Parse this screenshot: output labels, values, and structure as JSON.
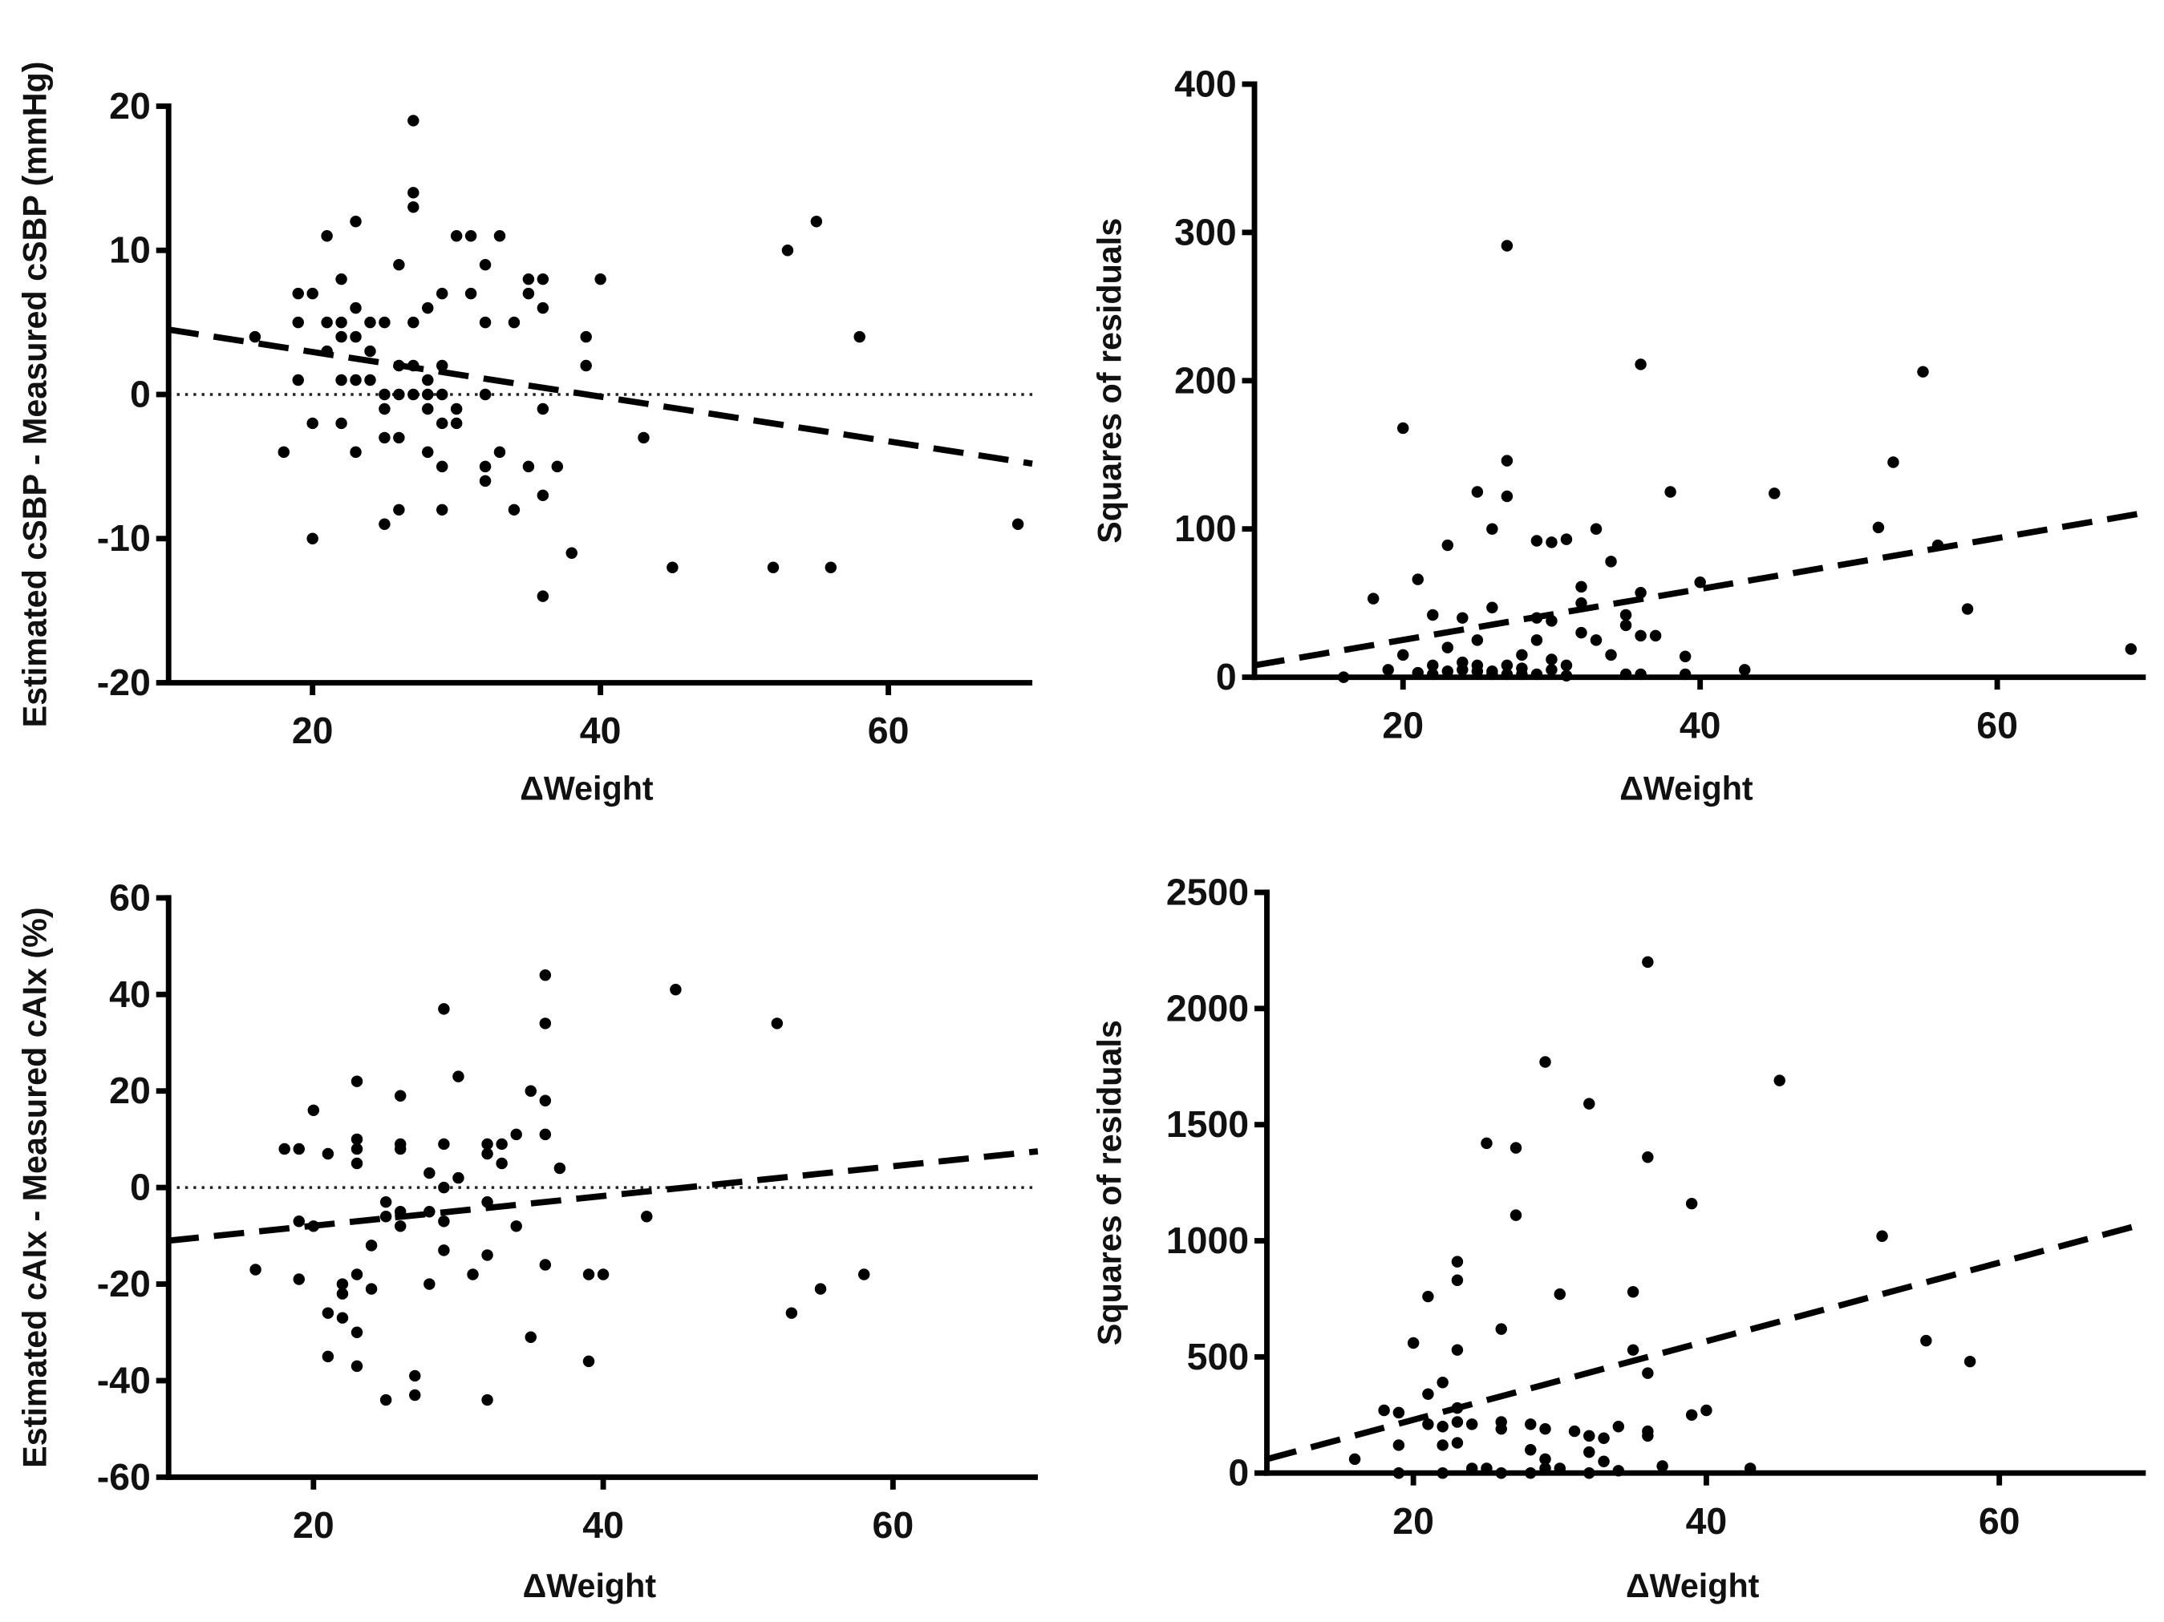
{
  "chart_data": [
    {
      "type": "scatter",
      "title": "",
      "xlabel": "ΔWeight",
      "ylabel": "Estimated cSBP - Measured cSBP (mmHg)",
      "xlim": [
        10,
        70
      ],
      "ylim": [
        -20,
        20
      ],
      "xticks": [
        20,
        40,
        60
      ],
      "yticks": [
        -20,
        -10,
        0,
        10,
        20
      ],
      "grid": false,
      "zero_line": true,
      "regression": {
        "x": [
          10,
          70
        ],
        "y": [
          4.5,
          -4.8
        ]
      },
      "points": [
        [
          16,
          4
        ],
        [
          18,
          -4
        ],
        [
          19,
          7
        ],
        [
          19,
          5
        ],
        [
          19,
          1
        ],
        [
          20,
          7
        ],
        [
          20,
          -2
        ],
        [
          20,
          -10
        ],
        [
          21,
          11
        ],
        [
          21,
          5
        ],
        [
          21,
          3
        ],
        [
          22,
          8
        ],
        [
          22,
          5
        ],
        [
          22,
          4
        ],
        [
          22,
          1
        ],
        [
          22,
          -2
        ],
        [
          23,
          12
        ],
        [
          23,
          6
        ],
        [
          23,
          4
        ],
        [
          23,
          1
        ],
        [
          23,
          -4
        ],
        [
          24,
          5
        ],
        [
          24,
          3
        ],
        [
          24,
          1
        ],
        [
          25,
          5
        ],
        [
          25,
          0
        ],
        [
          25,
          -1
        ],
        [
          25,
          -3
        ],
        [
          25,
          -9
        ],
        [
          26,
          9
        ],
        [
          26,
          2
        ],
        [
          26,
          0
        ],
        [
          26,
          -3
        ],
        [
          26,
          -8
        ],
        [
          27,
          19
        ],
        [
          27,
          14
        ],
        [
          27,
          13
        ],
        [
          27,
          5
        ],
        [
          27,
          2
        ],
        [
          27,
          0
        ],
        [
          28,
          6
        ],
        [
          28,
          1
        ],
        [
          28,
          0
        ],
        [
          28,
          -1
        ],
        [
          28,
          -4
        ],
        [
          29,
          7
        ],
        [
          29,
          2
        ],
        [
          29,
          0
        ],
        [
          29,
          -2
        ],
        [
          29,
          -5
        ],
        [
          29,
          -8
        ],
        [
          30,
          11
        ],
        [
          30,
          -1
        ],
        [
          30,
          -2
        ],
        [
          31,
          11
        ],
        [
          31,
          7
        ],
        [
          32,
          9
        ],
        [
          32,
          5
        ],
        [
          32,
          0
        ],
        [
          32,
          -5
        ],
        [
          32,
          -6
        ],
        [
          33,
          11
        ],
        [
          33,
          -4
        ],
        [
          34,
          5
        ],
        [
          34,
          -8
        ],
        [
          35,
          8
        ],
        [
          35,
          7
        ],
        [
          35,
          -5
        ],
        [
          36,
          8
        ],
        [
          36,
          6
        ],
        [
          36,
          -1
        ],
        [
          36,
          -7
        ],
        [
          36,
          -14
        ],
        [
          37,
          -5
        ],
        [
          38,
          -11
        ],
        [
          39,
          4
        ],
        [
          39,
          2
        ],
        [
          40,
          8
        ],
        [
          43,
          -3
        ],
        [
          45,
          -12
        ],
        [
          52,
          -12
        ],
        [
          53,
          10
        ],
        [
          55,
          12
        ],
        [
          56,
          -12
        ],
        [
          58,
          4
        ],
        [
          69,
          -9
        ]
      ]
    },
    {
      "type": "scatter",
      "title": "",
      "xlabel": "ΔWeight",
      "ylabel": "Squares of residuals",
      "xlim": [
        10,
        70
      ],
      "ylim": [
        0,
        400
      ],
      "xticks": [
        20,
        40,
        60
      ],
      "yticks": [
        0,
        100,
        200,
        300,
        400
      ],
      "grid": false,
      "zero_line": false,
      "regression": {
        "x": [
          10,
          70
        ],
        "y": [
          8,
          111
        ]
      },
      "points": [
        [
          16,
          0
        ],
        [
          18,
          53
        ],
        [
          19,
          5
        ],
        [
          20,
          168
        ],
        [
          20,
          15
        ],
        [
          21,
          66
        ],
        [
          21,
          3
        ],
        [
          22,
          42
        ],
        [
          22,
          8
        ],
        [
          22,
          2
        ],
        [
          23,
          89
        ],
        [
          23,
          20
        ],
        [
          23,
          4
        ],
        [
          24,
          40
        ],
        [
          24,
          10
        ],
        [
          24,
          5
        ],
        [
          25,
          125
        ],
        [
          25,
          25
        ],
        [
          25,
          8
        ],
        [
          25,
          4
        ],
        [
          26,
          100
        ],
        [
          26,
          47
        ],
        [
          26,
          4
        ],
        [
          26,
          2
        ],
        [
          27,
          291
        ],
        [
          27,
          146
        ],
        [
          27,
          122
        ],
        [
          27,
          8
        ],
        [
          27,
          2
        ],
        [
          28,
          15
        ],
        [
          28,
          6
        ],
        [
          28,
          2
        ],
        [
          29,
          92
        ],
        [
          29,
          40
        ],
        [
          29,
          25
        ],
        [
          29,
          2
        ],
        [
          30,
          91
        ],
        [
          30,
          38
        ],
        [
          30,
          12
        ],
        [
          30,
          5
        ],
        [
          31,
          93
        ],
        [
          31,
          8
        ],
        [
          31,
          1
        ],
        [
          32,
          61
        ],
        [
          32,
          50
        ],
        [
          32,
          30
        ],
        [
          33,
          100
        ],
        [
          33,
          25
        ],
        [
          34,
          78
        ],
        [
          34,
          15
        ],
        [
          35,
          42
        ],
        [
          35,
          35
        ],
        [
          35,
          2
        ],
        [
          36,
          211
        ],
        [
          36,
          57
        ],
        [
          36,
          28
        ],
        [
          36,
          2
        ],
        [
          37,
          28
        ],
        [
          38,
          125
        ],
        [
          39,
          14
        ],
        [
          39,
          2
        ],
        [
          40,
          64
        ],
        [
          43,
          5
        ],
        [
          45,
          124
        ],
        [
          52,
          101
        ],
        [
          53,
          145
        ],
        [
          55,
          206
        ],
        [
          56,
          89
        ],
        [
          58,
          46
        ],
        [
          69,
          19
        ]
      ]
    },
    {
      "type": "scatter",
      "title": "",
      "xlabel": "ΔWeight",
      "ylabel": "Estimated cAIx - Measured cAIx (%)",
      "xlim": [
        10,
        70
      ],
      "ylim": [
        -60,
        60
      ],
      "xticks": [
        20,
        40,
        60
      ],
      "yticks": [
        -60,
        -40,
        -20,
        0,
        20,
        40,
        60
      ],
      "grid": false,
      "zero_line": true,
      "regression": {
        "x": [
          10,
          70
        ],
        "y": [
          -11,
          7.5
        ]
      },
      "points": [
        [
          16,
          -17
        ],
        [
          18,
          8
        ],
        [
          19,
          8
        ],
        [
          19,
          -7
        ],
        [
          19,
          -19
        ],
        [
          20,
          16
        ],
        [
          20,
          -8
        ],
        [
          21,
          7
        ],
        [
          21,
          -26
        ],
        [
          21,
          -35
        ],
        [
          22,
          -20
        ],
        [
          22,
          -22
        ],
        [
          22,
          -27
        ],
        [
          23,
          22
        ],
        [
          23,
          10
        ],
        [
          23,
          8
        ],
        [
          23,
          5
        ],
        [
          23,
          -18
        ],
        [
          23,
          -30
        ],
        [
          23,
          -37
        ],
        [
          24,
          -21
        ],
        [
          24,
          -12
        ],
        [
          25,
          -3
        ],
        [
          25,
          -6
        ],
        [
          25,
          -44
        ],
        [
          26,
          19
        ],
        [
          26,
          9
        ],
        [
          26,
          8
        ],
        [
          26,
          -5
        ],
        [
          26,
          -8
        ],
        [
          27,
          -39
        ],
        [
          27,
          -43
        ],
        [
          28,
          -20
        ],
        [
          28,
          -5
        ],
        [
          28,
          3
        ],
        [
          29,
          37
        ],
        [
          29,
          9
        ],
        [
          29,
          0
        ],
        [
          29,
          -7
        ],
        [
          29,
          -13
        ],
        [
          30,
          2
        ],
        [
          30,
          23
        ],
        [
          31,
          -18
        ],
        [
          32,
          9
        ],
        [
          32,
          7
        ],
        [
          32,
          -3
        ],
        [
          32,
          -14
        ],
        [
          32,
          -44
        ],
        [
          33,
          5
        ],
        [
          33,
          9
        ],
        [
          34,
          -8
        ],
        [
          34,
          11
        ],
        [
          35,
          20
        ],
        [
          35,
          -31
        ],
        [
          36,
          44
        ],
        [
          36,
          34
        ],
        [
          36,
          18
        ],
        [
          36,
          11
        ],
        [
          36,
          -16
        ],
        [
          37,
          4
        ],
        [
          39,
          -18
        ],
        [
          39,
          -36
        ],
        [
          40,
          -18
        ],
        [
          43,
          -6
        ],
        [
          45,
          41
        ],
        [
          52,
          34
        ],
        [
          53,
          -26
        ],
        [
          55,
          -21
        ],
        [
          58,
          -18
        ]
      ]
    },
    {
      "type": "scatter",
      "title": "",
      "xlabel": "ΔWeight",
      "ylabel": "Squares of residuals",
      "xlim": [
        10,
        70
      ],
      "ylim": [
        0,
        2500
      ],
      "xticks": [
        20,
        40,
        60
      ],
      "yticks": [
        0,
        500,
        1000,
        1500,
        2000,
        2500
      ],
      "grid": false,
      "zero_line": false,
      "regression": {
        "x": [
          10,
          70
        ],
        "y": [
          60,
          1075
        ]
      },
      "points": [
        [
          16,
          60
        ],
        [
          18,
          270
        ],
        [
          19,
          260
        ],
        [
          19,
          120
        ],
        [
          19,
          0
        ],
        [
          20,
          560
        ],
        [
          21,
          760
        ],
        [
          21,
          340
        ],
        [
          21,
          210
        ],
        [
          22,
          390
        ],
        [
          22,
          200
        ],
        [
          22,
          120
        ],
        [
          22,
          0
        ],
        [
          23,
          910
        ],
        [
          23,
          830
        ],
        [
          23,
          530
        ],
        [
          23,
          280
        ],
        [
          23,
          220
        ],
        [
          23,
          130
        ],
        [
          24,
          210
        ],
        [
          24,
          20
        ],
        [
          25,
          1420
        ],
        [
          25,
          20
        ],
        [
          26,
          620
        ],
        [
          26,
          220
        ],
        [
          26,
          190
        ],
        [
          26,
          0
        ],
        [
          27,
          1400
        ],
        [
          27,
          1110
        ],
        [
          28,
          210
        ],
        [
          28,
          100
        ],
        [
          28,
          0
        ],
        [
          29,
          1770
        ],
        [
          29,
          190
        ],
        [
          29,
          60
        ],
        [
          29,
          20
        ],
        [
          30,
          770
        ],
        [
          30,
          20
        ],
        [
          31,
          180
        ],
        [
          32,
          1590
        ],
        [
          32,
          160
        ],
        [
          32,
          90
        ],
        [
          32,
          0
        ],
        [
          33,
          150
        ],
        [
          33,
          50
        ],
        [
          34,
          200
        ],
        [
          34,
          10
        ],
        [
          35,
          780
        ],
        [
          35,
          530
        ],
        [
          36,
          2200
        ],
        [
          36,
          1360
        ],
        [
          36,
          430
        ],
        [
          36,
          180
        ],
        [
          36,
          160
        ],
        [
          37,
          30
        ],
        [
          39,
          1160
        ],
        [
          39,
          250
        ],
        [
          40,
          270
        ],
        [
          43,
          20
        ],
        [
          45,
          1690
        ],
        [
          52,
          1020
        ],
        [
          55,
          570
        ],
        [
          58,
          480
        ]
      ]
    }
  ]
}
